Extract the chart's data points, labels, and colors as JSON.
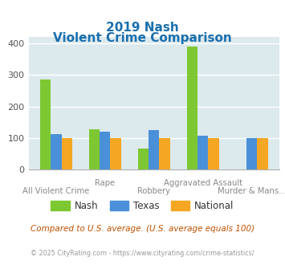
{
  "title_line1": "2019 Nash",
  "title_line2": "Violent Crime Comparison",
  "categories": [
    "All Violent Crime",
    "Rape",
    "Robbery",
    "Aggravated Assault",
    "Murder & Mans..."
  ],
  "nash_values": [
    285,
    128,
    67,
    390,
    0
  ],
  "texas_values": [
    113,
    120,
    125,
    108,
    100
  ],
  "national_values": [
    100,
    100,
    100,
    100,
    100
  ],
  "nash_color": "#7dc832",
  "texas_color": "#4a90d9",
  "national_color": "#f5a623",
  "bg_color": "#dce9ed",
  "ylim": [
    0,
    420
  ],
  "yticks": [
    0,
    100,
    200,
    300,
    400
  ],
  "title_color": "#1a6fad",
  "footer_text": "Compared to U.S. average. (U.S. average equals 100)",
  "copyright_text": "© 2025 CityRating.com - https://www.cityrating.com/crime-statistics/",
  "footer_color": "#c05000",
  "copyright_color": "#999999",
  "legend_labels": [
    "Nash",
    "Texas",
    "National"
  ],
  "bar_width": 0.22
}
